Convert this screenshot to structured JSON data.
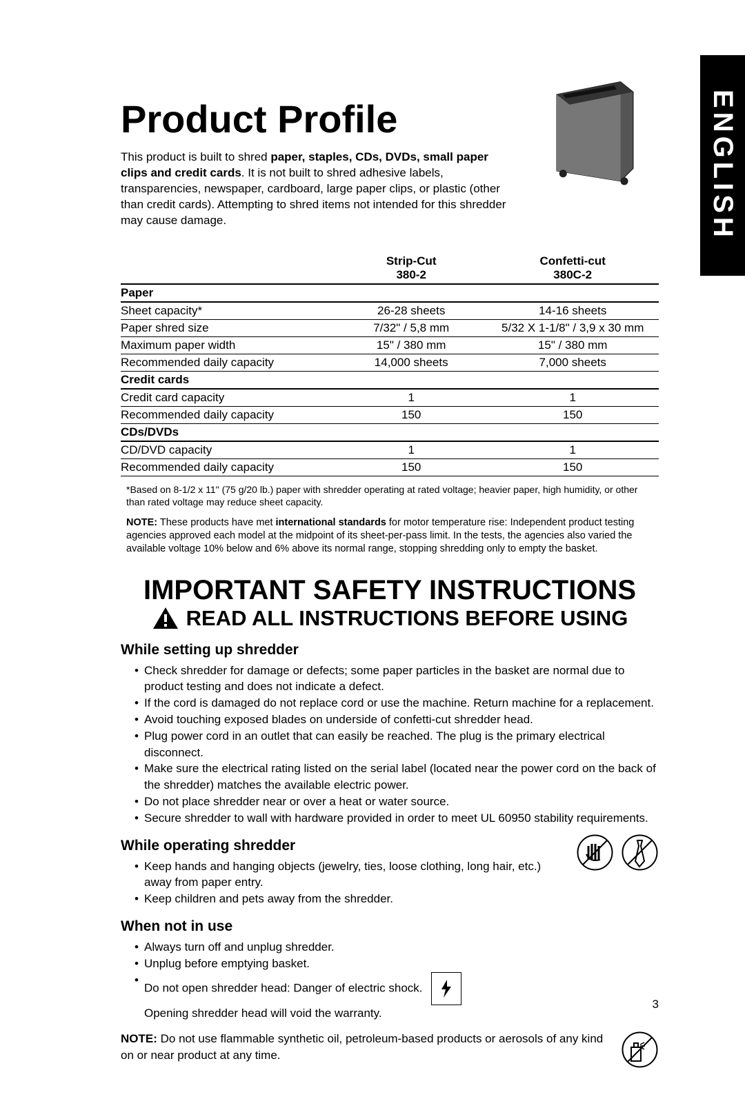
{
  "languageTab": "ENGLISH",
  "title": "Product Profile",
  "intro": {
    "pre": "This product is built to shred ",
    "bold": "paper, staples, CDs, DVDs, small paper clips and credit cards",
    "post": ". It is not built to shred adhesive labels, transparencies, newspaper, cardboard, large paper clips, or plastic (other than credit cards). Attempting to shred items not intended for this shredder may cause damage."
  },
  "specTable": {
    "col1Header": "Strip-Cut 380-2",
    "col2Header": "Confetti-cut 380C-2",
    "sections": [
      {
        "name": "Paper",
        "rows": [
          {
            "label": "Sheet capacity*",
            "c1": "26-28 sheets",
            "c2": "14-16 sheets"
          },
          {
            "label": "Paper shred size",
            "c1": "7/32\" / 5,8 mm",
            "c2": "5/32 X 1-1/8\" / 3,9 x 30 mm"
          },
          {
            "label": "Maximum paper width",
            "c1": "15\" / 380 mm",
            "c2": "15\" / 380 mm"
          },
          {
            "label": "Recommended daily capacity",
            "c1": "14,000 sheets",
            "c2": "7,000 sheets"
          }
        ]
      },
      {
        "name": "Credit cards",
        "rows": [
          {
            "label": "Credit card capacity",
            "c1": "1",
            "c2": "1"
          },
          {
            "label": "Recommended daily capacity",
            "c1": "150",
            "c2": "150"
          }
        ]
      },
      {
        "name": "CDs/DVDs",
        "rows": [
          {
            "label": "CD/DVD capacity",
            "c1": "1",
            "c2": "1"
          },
          {
            "label": "Recommended daily capacity",
            "c1": "150",
            "c2": "150"
          }
        ]
      }
    ]
  },
  "footnote": "*Based on 8-1/2 x 11\" (75 g/20 lb.) paper with shredder operating at rated voltage; heavier paper, high humidity, or other than rated voltage may reduce sheet capacity.",
  "note1": {
    "prefix": "NOTE:",
    "mid": " These products have met ",
    "bold2": "international standards",
    "rest": " for motor temperature rise: Independent product testing agencies approved each model at the midpoint of its sheet-per-pass limit. In the tests, the agencies also varied the available voltage 10% below and 6% above its normal range, stopping shredding only to empty the basket."
  },
  "safety": {
    "h1": "IMPORTANT SAFETY INSTRUCTIONS",
    "h2": "READ ALL INSTRUCTIONS BEFORE USING"
  },
  "setup": {
    "heading": "While setting up shredder",
    "items": [
      "Check shredder for damage or defects; some paper particles in the basket are normal due to product testing and does not indicate a defect.",
      "If the cord is damaged do not replace cord or use the machine. Return machine for a replacement.",
      "Avoid touching exposed blades on underside of confetti-cut shredder head.",
      "Plug power cord in an outlet that can easily be reached. The plug is the primary electrical disconnect.",
      "Make sure the electrical rating listed on the serial label (located near the power cord on the back of the shredder) matches the available electric power.",
      "Do not place shredder near or over a heat or water source.",
      "Secure shredder to wall with hardware provided in order to meet UL 60950 stability requirements."
    ]
  },
  "operating": {
    "heading": "While operating shredder",
    "items": [
      "Keep hands and hanging objects (jewelry, ties, loose clothing, long hair, etc.) away from paper entry.",
      "Keep children and pets away from the shredder."
    ]
  },
  "notInUse": {
    "heading": "When not in use",
    "items": [
      "Always turn off and unplug shredder.",
      "Unplug before emptying basket.",
      "Do not open shredder head: Danger of electric shock. Opening shredder head will void the warranty."
    ]
  },
  "flamNote": {
    "prefix": "NOTE:",
    "text": " Do not use flammable synthetic oil, petroleum-based products or aerosols of any kind on or near product at any time."
  },
  "pageNumber": "3",
  "colors": {
    "text": "#000000",
    "background": "#ffffff",
    "tabBg": "#000000",
    "tabText": "#ffffff"
  }
}
